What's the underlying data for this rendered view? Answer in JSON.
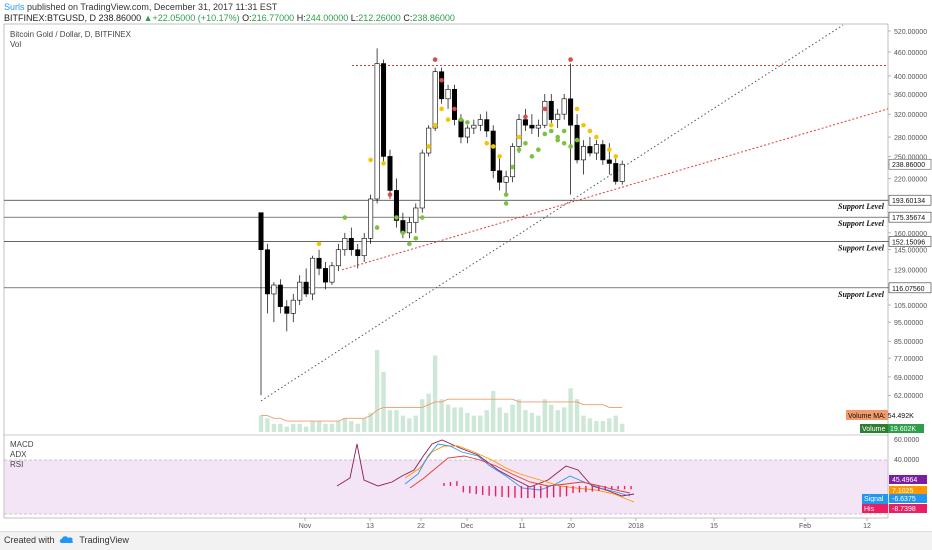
{
  "header": {
    "author": "Surls",
    "published": " published on TradingView.com, December 31, 2017 11:31 EST",
    "symbol": "BITFINEX:BTGUSD, D",
    "last": "238.86000",
    "change": "+22.05000 (+10.17%)",
    "o_label": "O:",
    "o_val": "216.77000",
    "h_label": "H:",
    "h_val": "244.00000",
    "l_label": "L:",
    "l_val": "212.26000",
    "c_label": "C:",
    "c_val": "238.86000"
  },
  "chart_title": "Bitcoin Gold / Dollar, D, BITFINEX",
  "vol_label": "Vol",
  "footer": {
    "created": "Created with",
    "brand": "TradingView",
    "logo_icon": "tradingview-cloud-icon"
  },
  "chart_data": {
    "type": "candlestick",
    "y_scale": "log",
    "y_ticks": [
      "520.00000",
      "460.00000",
      "400.00000",
      "360.00000",
      "320.00000",
      "280.00000",
      "250.00000",
      "238.86000",
      "220.00000",
      "193.60134",
      "175.35674",
      "160.00000",
      "152.15096",
      "145.00000",
      "129.00000",
      "116.07560",
      "105.00000",
      "95.00000",
      "85.00000",
      "77.00000",
      "69.00000",
      "62.00000"
    ],
    "x_ticks": [
      "Nov",
      "13",
      "22",
      "Dec",
      "11",
      "20",
      "2018",
      "15",
      "Feb",
      "12"
    ],
    "last_price": "238.86000",
    "support_levels": [
      {
        "value": 193.60134,
        "label": "Support Level",
        "tag": "193.60134"
      },
      {
        "value": 175.35674,
        "label": "Support Level",
        "tag": "175.35674"
      },
      {
        "value": 152.15096,
        "label": "Support Level",
        "tag": "152.15096"
      },
      {
        "value": 116.0756,
        "label": "Support Level",
        "tag": "116.07560"
      }
    ],
    "resistance": {
      "value": 425,
      "color": "#e53935"
    },
    "candles": [
      [
        0,
        180,
        180,
        62,
        145
      ],
      [
        1,
        145,
        150,
        100,
        112
      ],
      [
        2,
        112,
        120,
        95,
        118
      ],
      [
        3,
        118,
        122,
        100,
        104
      ],
      [
        4,
        104,
        108,
        90,
        100
      ],
      [
        5,
        100,
        112,
        95,
        108
      ],
      [
        6,
        108,
        125,
        105,
        120
      ],
      [
        7,
        120,
        130,
        110,
        112
      ],
      [
        8,
        112,
        140,
        108,
        138
      ],
      [
        9,
        138,
        145,
        125,
        130
      ],
      [
        10,
        130,
        135,
        115,
        120
      ],
      [
        11,
        120,
        135,
        118,
        132
      ],
      [
        12,
        132,
        150,
        128,
        145
      ],
      [
        13,
        145,
        160,
        140,
        155
      ],
      [
        14,
        155,
        165,
        140,
        145
      ],
      [
        15,
        145,
        150,
        130,
        140
      ],
      [
        16,
        140,
        160,
        135,
        155
      ],
      [
        17,
        155,
        200,
        150,
        195
      ],
      [
        18,
        195,
        470,
        190,
        430
      ],
      [
        19,
        430,
        440,
        240,
        250
      ],
      [
        20,
        250,
        260,
        195,
        205
      ],
      [
        21,
        205,
        220,
        165,
        172
      ],
      [
        22,
        172,
        180,
        155,
        160
      ],
      [
        23,
        160,
        175,
        155,
        170
      ],
      [
        24,
        170,
        190,
        160,
        185
      ],
      [
        25,
        185,
        260,
        180,
        255
      ],
      [
        26,
        255,
        300,
        250,
        295
      ],
      [
        27,
        295,
        420,
        290,
        410
      ],
      [
        28,
        410,
        420,
        340,
        350
      ],
      [
        29,
        350,
        380,
        330,
        370
      ],
      [
        30,
        370,
        380,
        300,
        310
      ],
      [
        31,
        310,
        320,
        270,
        280
      ],
      [
        32,
        280,
        300,
        270,
        295
      ],
      [
        33,
        295,
        310,
        285,
        300
      ],
      [
        34,
        300,
        320,
        290,
        310
      ],
      [
        35,
        310,
        325,
        280,
        290
      ],
      [
        36,
        290,
        300,
        220,
        230
      ],
      [
        37,
        230,
        250,
        205,
        215
      ],
      [
        38,
        215,
        230,
        200,
        222
      ],
      [
        39,
        222,
        270,
        215,
        265
      ],
      [
        40,
        265,
        320,
        255,
        310
      ],
      [
        41,
        310,
        330,
        290,
        300
      ],
      [
        42,
        300,
        320,
        285,
        295
      ],
      [
        43,
        295,
        310,
        280,
        300
      ],
      [
        44,
        300,
        360,
        295,
        345
      ],
      [
        45,
        345,
        360,
        300,
        310
      ],
      [
        46,
        310,
        330,
        295,
        320
      ],
      [
        47,
        320,
        360,
        310,
        350
      ],
      [
        48,
        350,
        430,
        200,
        300
      ],
      [
        49,
        300,
        320,
        240,
        245
      ],
      [
        50,
        245,
        275,
        225,
        265
      ],
      [
        51,
        265,
        280,
        250,
        255
      ],
      [
        52,
        255,
        275,
        245,
        268
      ],
      [
        53,
        268,
        275,
        238,
        245
      ],
      [
        54,
        245,
        270,
        225,
        240
      ],
      [
        55,
        240,
        250,
        212,
        216
      ],
      [
        56,
        216,
        244,
        212,
        238.86
      ]
    ],
    "volumes": [
      6,
      5,
      3,
      3,
      2,
      3,
      3,
      2,
      4,
      4,
      3,
      3,
      4,
      5,
      4,
      3,
      5,
      7,
      30,
      22,
      8,
      8,
      6,
      5,
      6,
      12,
      14,
      28,
      12,
      10,
      9,
      9,
      7,
      6,
      6,
      8,
      15,
      9,
      7,
      10,
      12,
      8,
      7,
      6,
      12,
      10,
      8,
      9,
      16,
      12,
      6,
      5,
      4,
      4,
      5,
      6,
      3
    ],
    "volume_ma_label": "Volume MA",
    "volume_ma_value": "54.492K",
    "volume_label": "Volume",
    "volume_value": "19.602K",
    "indicators": {
      "labels": [
        "MACD",
        "ADX",
        "RSI"
      ],
      "y_ticks": [
        "60.0000",
        "40.0000"
      ],
      "tags": [
        {
          "label": "",
          "value": "45.4964",
          "color": "#7b1fa2"
        },
        {
          "label": "",
          "value": "7.1025",
          "color": "#ff9800"
        },
        {
          "label": "Signal",
          "value": "-6.6375",
          "color": "#2196f3"
        },
        {
          "label": "MACD",
          "value": "",
          "color": "#2196f3"
        },
        {
          "label": "His",
          "value": "-8.7398",
          "color": "#e91e63"
        }
      ]
    },
    "colors": {
      "up": "#ffffff",
      "down": "#000000",
      "dot_yellow": "#f5c400",
      "dot_green": "#7cc142",
      "dot_red": "#e04848",
      "vol": "#cde8d6",
      "vol_ma": "#f19a6c",
      "trend": "#e53935",
      "trend2": "#555555",
      "rsi_bg": "#f3e5f5",
      "rsi_line": "#8e1b55"
    }
  }
}
